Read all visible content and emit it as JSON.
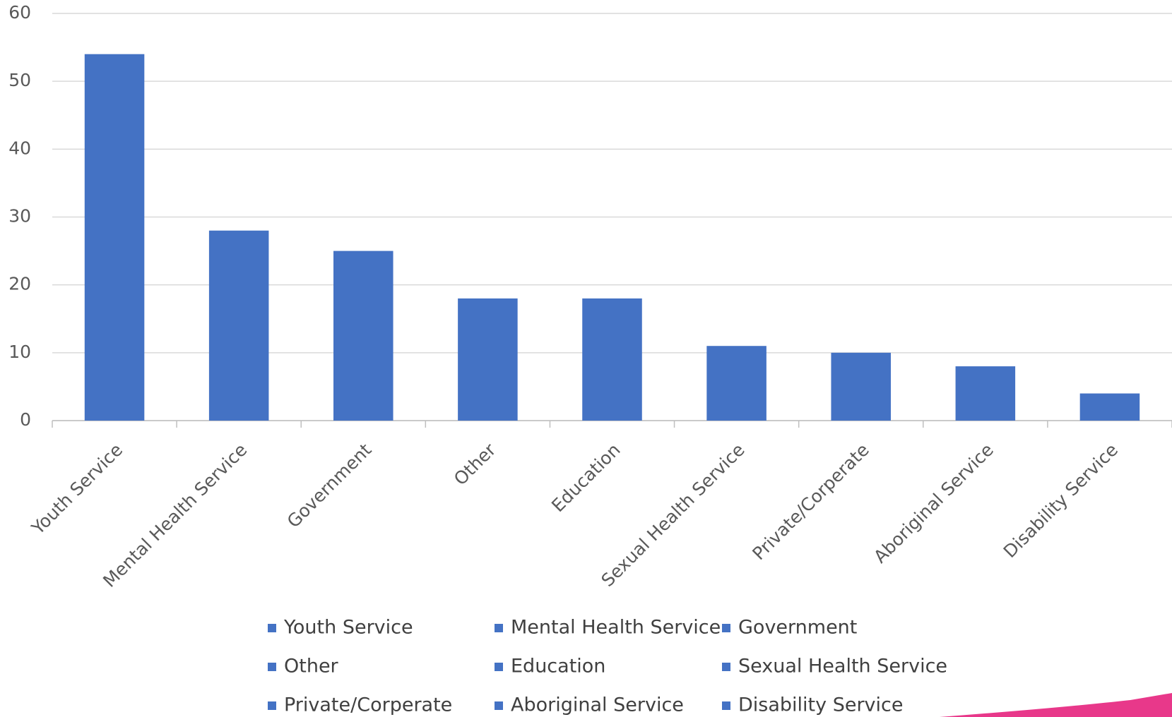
{
  "chart_data": {
    "type": "bar",
    "categories": [
      "Youth Service",
      "Mental Health Service",
      "Government",
      "Other",
      "Education",
      "Sexual Health Service",
      "Private/Corperate",
      "Aboriginal Service",
      "Disability Service"
    ],
    "values": [
      54,
      28,
      25,
      18,
      18,
      11,
      10,
      8,
      4
    ],
    "color": "#4472c4",
    "ylim": [
      0,
      60
    ],
    "yticks": [
      0,
      10,
      20,
      30,
      40,
      50,
      60
    ],
    "grid": true,
    "legend": "bottom"
  }
}
